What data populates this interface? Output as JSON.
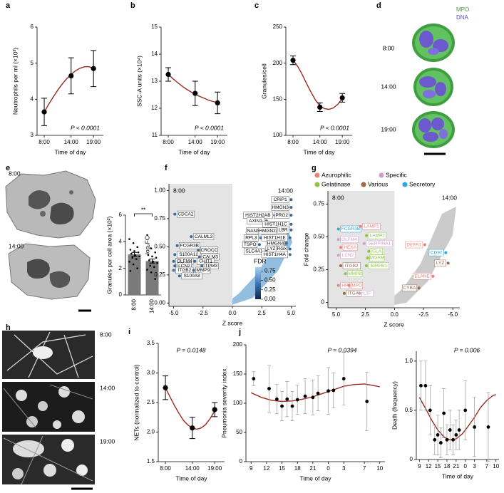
{
  "chart_data": [
    {
      "type": "line",
      "panel": "a",
      "ylabel": "Neutrophils per ml (×10³)",
      "xlabel": "Time of day",
      "annotation": "P < 0.0001",
      "xlim": [
        6.4,
        21.2
      ],
      "xticks": [
        {
          "value": 8,
          "label": "8:00"
        },
        {
          "value": 14,
          "label": "14:00"
        },
        {
          "value": 19,
          "label": "19:00"
        }
      ],
      "ylim": [
        3,
        6
      ],
      "yticks": [
        3,
        4,
        5,
        6
      ],
      "color": "#9a2a1f",
      "error_color": "#000000",
      "points": {
        "x": [
          8,
          14,
          19
        ],
        "values": [
          3.65,
          4.65,
          4.85
        ],
        "errors": [
          0.38,
          0.5,
          0.5
        ]
      },
      "fit": {
        "x": [
          8,
          9,
          10,
          11,
          12,
          13,
          14,
          15,
          16,
          17,
          18,
          19
        ],
        "values": [
          3.65,
          3.86,
          4.06,
          4.25,
          4.42,
          4.57,
          4.69,
          4.79,
          4.86,
          4.9,
          4.9,
          4.86
        ]
      }
    },
    {
      "type": "line",
      "panel": "b",
      "ylabel": "SSC-A units (×10⁴)",
      "xlabel": "Time of day",
      "annotation": "P < 0.0001",
      "xlim": [
        6.4,
        21.2
      ],
      "xticks": [
        {
          "value": 8,
          "label": "8:00"
        },
        {
          "value": 14,
          "label": "14:00"
        },
        {
          "value": 19,
          "label": "19:00"
        }
      ],
      "ylim": [
        11,
        15
      ],
      "yticks": [
        11,
        12,
        13,
        14,
        15
      ],
      "color": "#9a2a1f",
      "error_color": "#000000",
      "points": {
        "x": [
          8,
          14,
          19
        ],
        "values": [
          13.25,
          12.55,
          12.2
        ],
        "errors": [
          0.25,
          0.45,
          0.4
        ]
      },
      "fit": {
        "x": [
          8,
          9,
          10,
          11,
          12,
          13,
          14,
          15,
          16,
          17,
          18,
          19
        ],
        "values": [
          13.25,
          13.1,
          12.96,
          12.83,
          12.71,
          12.61,
          12.52,
          12.44,
          12.37,
          12.3,
          12.25,
          12.21
        ]
      }
    },
    {
      "type": "line",
      "panel": "c",
      "ylabel": "Granules/cell",
      "xlabel": "Time of day",
      "annotation": "P < 0.0001",
      "xlim": [
        6.4,
        21.2
      ],
      "xticks": [
        {
          "value": 8,
          "label": "8:00"
        },
        {
          "value": 14,
          "label": "14:00"
        },
        {
          "value": 19,
          "label": "19:00"
        }
      ],
      "ylim": [
        100,
        250
      ],
      "yticks": [
        100,
        150,
        200,
        250
      ],
      "color": "#9a2a1f",
      "error_color": "#000000",
      "points": {
        "x": [
          8,
          14,
          19
        ],
        "values": [
          204,
          139,
          152
        ],
        "errors": [
          6,
          6,
          6
        ]
      },
      "fit": {
        "x": [
          8,
          9,
          10,
          11,
          12,
          13,
          14,
          15,
          16,
          17,
          18,
          19
        ],
        "values": [
          204,
          196,
          185,
          172,
          160,
          149,
          141,
          137,
          136,
          138,
          143,
          151
        ]
      }
    },
    {
      "type": "bar",
      "panel": "e",
      "ylabel": "Granules per cell area (×10²)",
      "annotation": "**",
      "categories": [
        "8:00",
        "14:00"
      ],
      "values": [
        3.05,
        2.55
      ],
      "errors": [
        0.15,
        0.15
      ],
      "color": "#7a7a7a",
      "ylim": [
        0,
        6
      ],
      "yticks": [
        0,
        2,
        4,
        6
      ],
      "dots": [
        [
          4.2,
          3.9,
          3.6,
          3.4,
          3.3,
          3.2,
          3.1,
          3.0,
          2.9,
          2.8,
          2.7,
          2.5,
          2.3,
          2.0,
          1.8
        ],
        [
          4.5,
          3.5,
          3.2,
          3.0,
          2.9,
          2.8,
          2.6,
          2.5,
          2.4,
          2.2,
          2.1,
          1.9,
          1.7,
          1.2
        ]
      ]
    },
    {
      "type": "volcano",
      "panel": "f",
      "xlabel": "Z score",
      "ylabel": "log₂FC",
      "left_label": "8:00",
      "right_label": "14:00",
      "xlim": [
        -5.4,
        5.4
      ],
      "xticks": [
        {
          "value": -5,
          "label": "-5.0"
        },
        -2.5,
        {
          "value": 0,
          "label": "0.0"
        },
        2.5,
        {
          "value": 5,
          "label": "5.0"
        }
      ],
      "ylim": [
        -0.03,
        1.06
      ],
      "yticks": [
        {
          "value": 0,
          "label": "0.00"
        },
        0.25,
        {
          "value": 0.5,
          "label": "0.50"
        },
        0.75,
        {
          "value": 1,
          "label": "1.00"
        }
      ],
      "point_color": "#3f6a95",
      "genes": {
        "names": [
          "CDCA2",
          "CALML3",
          "FCGR3B",
          "CROCC",
          "S100A12",
          "CALM3",
          "CHIT1",
          "OLFM4",
          "LCN2",
          "TPM3",
          "ITGB2",
          "MMP9",
          "S100A8",
          "CRIP1",
          "HMGN3",
          "HIST2H2AB",
          "PRG2",
          "AXIN1",
          "HIST1H1C",
          "NANS",
          "HMGN2",
          "LBR",
          "RPL3",
          "HIST1H1E",
          "TSPO",
          "HMGN4",
          "LYZ",
          "RGX",
          "SLC4A1",
          "HIST1H4A"
        ],
        "x": [
          -4.9,
          -3.5,
          -4.7,
          -2.9,
          -4.9,
          -2.8,
          -3.2,
          -5.0,
          -4.9,
          -2.6,
          -5.0,
          -3.3,
          -4.5,
          5.0,
          5.0,
          3.6,
          5.0,
          2.9,
          5.0,
          2.6,
          3.9,
          5.0,
          2.4,
          4.9,
          2.3,
          4.6,
          4.0,
          4.9,
          2.9,
          4.9
        ],
        "values": [
          0.79,
          0.59,
          0.51,
          0.47,
          0.43,
          0.41,
          0.37,
          0.37,
          0.33,
          0.33,
          0.29,
          0.29,
          0.24,
          0.92,
          0.85,
          0.78,
          0.78,
          0.73,
          0.7,
          0.64,
          0.64,
          0.65,
          0.58,
          0.58,
          0.52,
          0.53,
          0.48,
          0.48,
          0.46,
          0.43
        ]
      },
      "colorbar": {
        "title": "FDR",
        "lim": [
          0,
          0.85
        ],
        "ticks": [
          {
            "value": 0,
            "label": "0.00"
          },
          0.25,
          {
            "value": 0.5,
            "label": "0.50"
          },
          0.75
        ]
      }
    },
    {
      "type": "volcano",
      "panel": "g",
      "xlabel": "Z score",
      "ylabel": "Fold change",
      "left_label": "8:00",
      "right_label": "14:00",
      "xlim": [
        5.7,
        -5.6
      ],
      "xticks": [
        {
          "value": 5,
          "label": "5.0"
        },
        2.5,
        {
          "value": 0,
          "label": "0.0"
        },
        -2.5,
        {
          "value": -5,
          "label": "-5.0"
        }
      ],
      "ylim": [
        -0.04,
        0.85
      ],
      "yticks": [
        0,
        0.25,
        {
          "value": 0.5,
          "label": "0.50"
        },
        0.75
      ],
      "groups": [
        {
          "name": "Azurophilic",
          "color": "#e8837a"
        },
        {
          "name": "Specific",
          "color": "#d49bd0"
        },
        {
          "name": "Gelatinase",
          "color": "#8dc63f"
        },
        {
          "name": "Various",
          "color": "#9a6a4f"
        },
        {
          "name": "Secretory",
          "color": "#2ba6de"
        }
      ],
      "genes": {
        "names": [
          "FCGR3B",
          "OLFM4",
          "HEXA",
          "LCN2",
          "ITGB2",
          "MMP8",
          "HP",
          "MPO",
          "ITGAM",
          "LAMP1",
          "LAMP2",
          "SERPINA1",
          "GLA",
          "MGAM",
          "SIRPB1",
          "LTF",
          "DEFA1",
          "CD97",
          "LYZ",
          "ELANE",
          "CYBA"
        ],
        "x": [
          4.8,
          4.8,
          4.6,
          4.8,
          4.6,
          4.2,
          4.8,
          3.9,
          4.3,
          2.9,
          2.4,
          2.6,
          2.2,
          2.3,
          2.4,
          3.0,
          -2.6,
          -4.4,
          -4.6,
          -3.3,
          -2.1
        ],
        "values": [
          0.56,
          0.48,
          0.42,
          0.36,
          0.28,
          0.22,
          0.13,
          0.13,
          0.07,
          0.58,
          0.51,
          0.45,
          0.39,
          0.34,
          0.28,
          0.07,
          0.44,
          0.38,
          0.3,
          0.2,
          0.11
        ],
        "group": [
          4,
          1,
          0,
          1,
          3,
          2,
          0,
          0,
          3,
          0,
          2,
          1,
          2,
          2,
          2,
          1,
          0,
          4,
          3,
          0,
          3
        ]
      }
    },
    {
      "type": "line",
      "panel": "i",
      "ylabel": "NETs (normalized to control)",
      "xlabel": "Time of day",
      "annotation": "P = 0.0148",
      "xlim": [
        6.4,
        21.2
      ],
      "xticks": [
        {
          "value": 8,
          "label": "8:00"
        },
        {
          "value": 14,
          "label": "14:00"
        },
        {
          "value": 19,
          "label": "19:00"
        }
      ],
      "ylim": [
        1.5,
        3.5
      ],
      "yticks": [
        1.5,
        {
          "value": 2,
          "label": "2.0"
        },
        2.5,
        {
          "value": 3,
          "label": "3.0"
        },
        3.5
      ],
      "color": "#9a2a1f",
      "error_color": "#000000",
      "points": {
        "x": [
          8,
          14,
          19
        ],
        "values": [
          2.75,
          2.07,
          2.38
        ],
        "errors": [
          0.2,
          0.18,
          0.12
        ]
      },
      "fit": {
        "x": [
          8,
          9,
          10,
          11,
          12,
          13,
          14,
          15,
          16,
          17,
          18,
          19
        ],
        "values": [
          2.75,
          2.6,
          2.45,
          2.32,
          2.2,
          2.12,
          2.07,
          2.05,
          2.07,
          2.13,
          2.23,
          2.36
        ]
      }
    },
    {
      "type": "scatter",
      "panel": "j",
      "ylabel": "Pneumonia severity index",
      "xlabel": "Time of day",
      "annotation": "P = 0.0394",
      "xlim": [
        8,
        35
      ],
      "xticks": [
        9,
        12,
        15,
        18,
        21,
        {
          "value": 24,
          "label": "0"
        },
        {
          "value": 27,
          "label": "3"
        },
        {
          "value": 31,
          "label": "7"
        },
        {
          "value": 34,
          "label": "10"
        }
      ],
      "ylim": [
        0,
        200
      ],
      "yticks": [
        0,
        50,
        100,
        150,
        200
      ],
      "color": "#9a2a1f",
      "error_color": "#9a9a9a",
      "points": {
        "x": [
          9.5,
          12.5,
          14,
          15,
          16,
          17,
          18,
          19.5,
          21,
          22,
          24,
          25,
          27,
          31.5
        ],
        "values": [
          142,
          125,
          107,
          95,
          107,
          95,
          106,
          112,
          110,
          117,
          121,
          122,
          142,
          103
        ],
        "errors": [
          12,
          40,
          25,
          25,
          30,
          25,
          25,
          30,
          30,
          30,
          40,
          30,
          45,
          50
        ]
      },
      "fit": {
        "x": [
          9,
          11,
          13,
          15,
          17,
          19,
          21,
          23,
          25,
          27,
          29,
          31,
          33,
          34
        ],
        "values": [
          118,
          110,
          105,
          103,
          104,
          107,
          111,
          117,
          123,
          129,
          132,
          133,
          130,
          128
        ]
      }
    },
    {
      "type": "scatter",
      "ylabel": "Death (frequency)",
      "xlabel": "Time of day",
      "annotation": "P = 0.006",
      "xlim": [
        8,
        35
      ],
      "xticks": [
        9,
        12,
        15,
        18,
        21,
        {
          "value": 24,
          "label": "0"
        },
        {
          "value": 27,
          "label": "3"
        },
        {
          "value": 31,
          "label": "7"
        },
        {
          "value": 34,
          "label": "10"
        }
      ],
      "ylim": [
        0,
        1.1
      ],
      "yticks": [
        0,
        0.5,
        {
          "value": 1,
          "label": "1.0"
        }
      ],
      "color": "#9a2a1f",
      "error_color": "#9a9a9a",
      "points": {
        "x": [
          9.5,
          11,
          12.5,
          14,
          15,
          16,
          17,
          18,
          19,
          20,
          21,
          22,
          24,
          27,
          31.5
        ],
        "values": [
          0.75,
          0.75,
          0.5,
          0.2,
          0.25,
          0.17,
          0.47,
          0.2,
          0.3,
          0.2,
          0.25,
          0.3,
          0.5,
          0.33,
          0.33
        ],
        "errors": [
          0.25,
          0.25,
          0.25,
          0.15,
          0.2,
          0.15,
          0.25,
          0.15,
          0.2,
          0.15,
          0.15,
          0.2,
          0.3,
          0.3,
          0.35
        ]
      },
      "fit": {
        "x": [
          9,
          11,
          13,
          15,
          17,
          19,
          21,
          23,
          25,
          27,
          29,
          31,
          33,
          34
        ],
        "values": [
          0.63,
          0.52,
          0.4,
          0.3,
          0.23,
          0.2,
          0.21,
          0.26,
          0.34,
          0.43,
          0.53,
          0.6,
          0.65,
          0.66
        ]
      }
    }
  ],
  "images": {
    "d": {
      "panel": "d",
      "legend": [
        "MPO",
        "DNA"
      ],
      "times": [
        "8:00",
        "14:00",
        "19:00"
      ]
    },
    "e": {
      "times": [
        "8:00",
        "14:00"
      ]
    },
    "h": {
      "panel": "h",
      "times": [
        "8:00",
        "14:00",
        "19:00"
      ]
    }
  }
}
